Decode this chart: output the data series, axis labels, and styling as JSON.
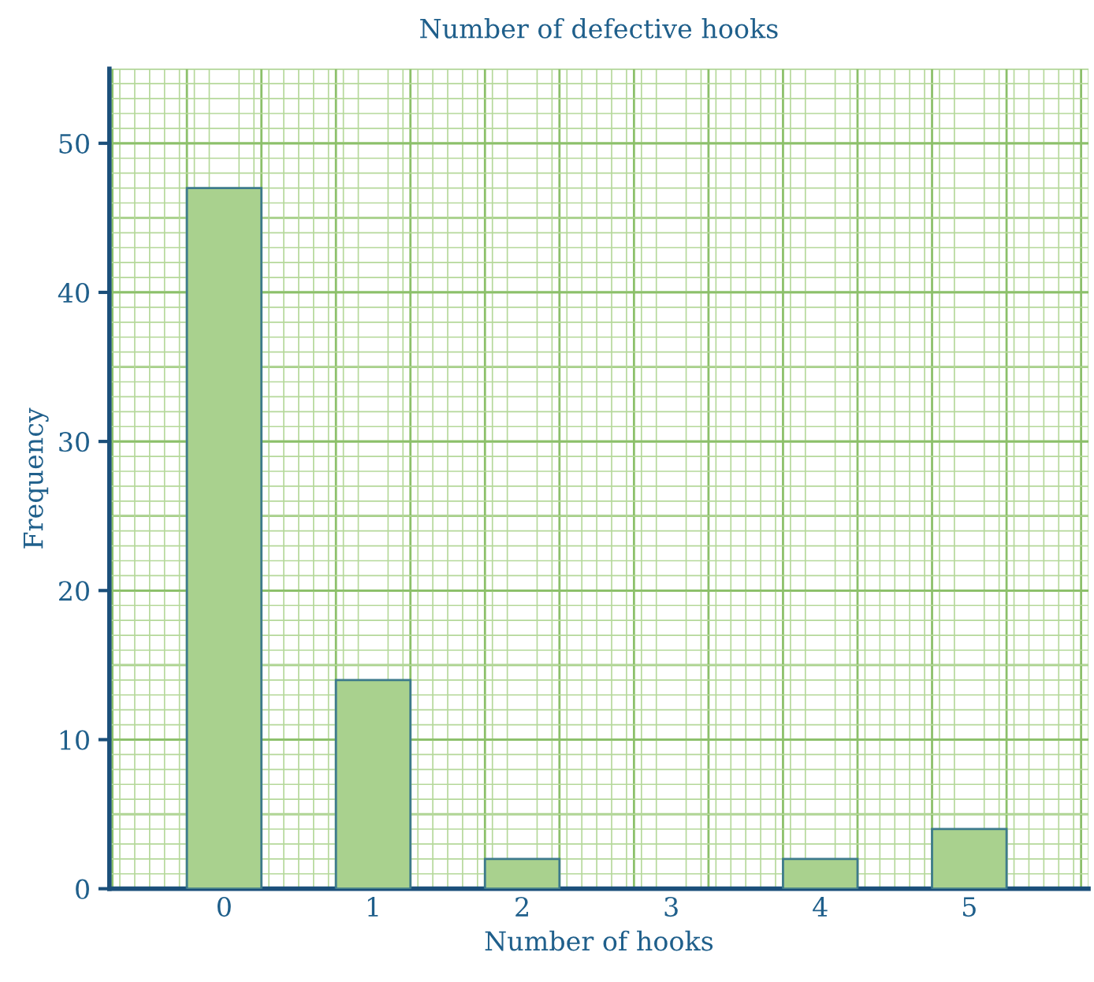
{
  "chart_data": {
    "type": "bar",
    "title": "Number of defective hooks",
    "xlabel": "Number of hooks",
    "ylabel": "Frequency",
    "categories": [
      "0",
      "1",
      "2",
      "3",
      "4",
      "5"
    ],
    "values": [
      47,
      14,
      2,
      0,
      2,
      4
    ],
    "color": "#a9d18e",
    "ylim": [
      0,
      55
    ],
    "yticks": [
      0,
      10,
      20,
      30,
      40,
      50
    ],
    "grid": true
  }
}
